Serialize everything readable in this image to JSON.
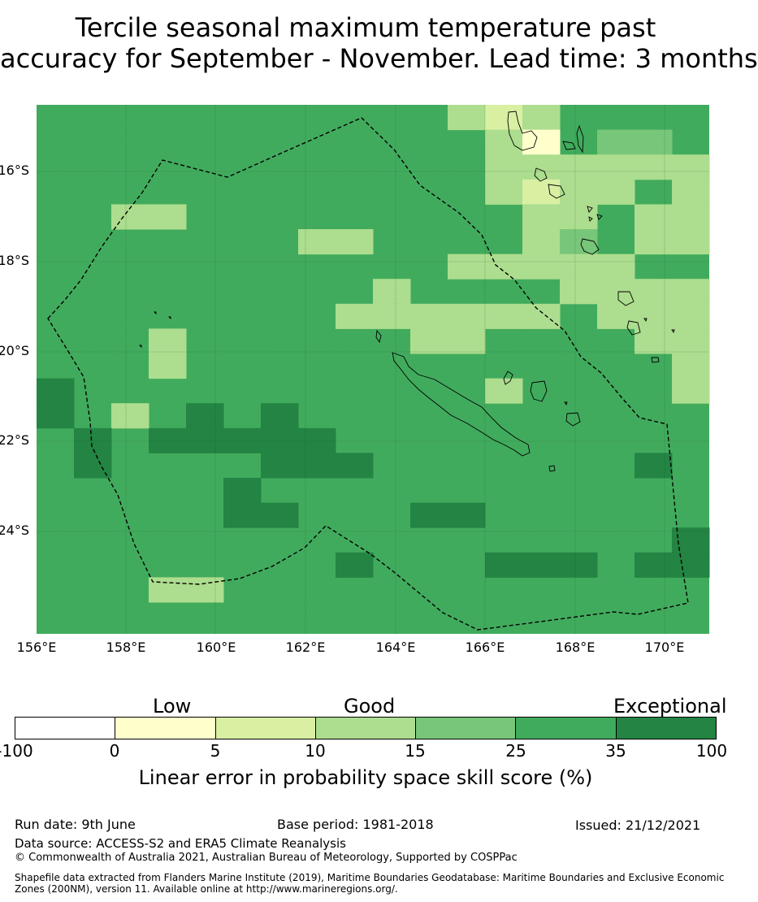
{
  "title_line1": "Tercile seasonal maximum temperature past",
  "title_line2": "accuracy for September - November. Lead time: 3 months",
  "map": {
    "lat_labels": [
      "16°S",
      "18°S",
      "20°S",
      "22°S",
      "24°S"
    ],
    "lon_labels": [
      "156°E",
      "158°E",
      "160°E",
      "162°E",
      "164°E",
      "166°E",
      "168°E",
      "170°E"
    ],
    "default_category": 5,
    "cells": [
      [
        11,
        0,
        3
      ],
      [
        12,
        0,
        2
      ],
      [
        13,
        0,
        3
      ],
      [
        12,
        1,
        3
      ],
      [
        13,
        1,
        1
      ],
      [
        15,
        1,
        4
      ],
      [
        16,
        1,
        4
      ],
      [
        12,
        2,
        3
      ],
      [
        13,
        2,
        3
      ],
      [
        14,
        2,
        3
      ],
      [
        15,
        2,
        3
      ],
      [
        16,
        2,
        3
      ],
      [
        17,
        2,
        3
      ],
      [
        12,
        3,
        3
      ],
      [
        13,
        3,
        2
      ],
      [
        14,
        3,
        3
      ],
      [
        15,
        3,
        3
      ],
      [
        17,
        3,
        3
      ],
      [
        2,
        4,
        3
      ],
      [
        3,
        4,
        3
      ],
      [
        13,
        4,
        3
      ],
      [
        14,
        4,
        3
      ],
      [
        16,
        4,
        3
      ],
      [
        17,
        4,
        3
      ],
      [
        7,
        5,
        3
      ],
      [
        8,
        5,
        3
      ],
      [
        13,
        5,
        3
      ],
      [
        14,
        5,
        4
      ],
      [
        16,
        5,
        3
      ],
      [
        17,
        5,
        3
      ],
      [
        11,
        6,
        3
      ],
      [
        12,
        6,
        3
      ],
      [
        13,
        6,
        3
      ],
      [
        14,
        6,
        3
      ],
      [
        15,
        6,
        3
      ],
      [
        9,
        7,
        3
      ],
      [
        14,
        7,
        3
      ],
      [
        15,
        7,
        3
      ],
      [
        16,
        7,
        3
      ],
      [
        17,
        7,
        3
      ],
      [
        8,
        8,
        3
      ],
      [
        9,
        8,
        3
      ],
      [
        10,
        8,
        3
      ],
      [
        11,
        8,
        3
      ],
      [
        12,
        8,
        3
      ],
      [
        13,
        8,
        3
      ],
      [
        15,
        8,
        3
      ],
      [
        16,
        8,
        3
      ],
      [
        17,
        8,
        3
      ],
      [
        3,
        9,
        3
      ],
      [
        10,
        9,
        3
      ],
      [
        11,
        9,
        3
      ],
      [
        16,
        9,
        3
      ],
      [
        17,
        9,
        3
      ],
      [
        3,
        10,
        3
      ],
      [
        17,
        10,
        3
      ],
      [
        0,
        11,
        6
      ],
      [
        12,
        11,
        3
      ],
      [
        17,
        11,
        3
      ],
      [
        0,
        12,
        6
      ],
      [
        2,
        12,
        3
      ],
      [
        4,
        12,
        6
      ],
      [
        6,
        12,
        6
      ],
      [
        1,
        13,
        6
      ],
      [
        3,
        13,
        6
      ],
      [
        4,
        13,
        6
      ],
      [
        5,
        13,
        6
      ],
      [
        6,
        13,
        6
      ],
      [
        7,
        13,
        6
      ],
      [
        1,
        14,
        6
      ],
      [
        6,
        14,
        6
      ],
      [
        7,
        14,
        6
      ],
      [
        8,
        14,
        6
      ],
      [
        16,
        14,
        6
      ],
      [
        5,
        15,
        6
      ],
      [
        5,
        16,
        6
      ],
      [
        6,
        16,
        6
      ],
      [
        10,
        16,
        6
      ],
      [
        11,
        16,
        6
      ],
      [
        17,
        17,
        6
      ],
      [
        8,
        18,
        6
      ],
      [
        12,
        18,
        6
      ],
      [
        13,
        18,
        6
      ],
      [
        14,
        18,
        6
      ],
      [
        16,
        18,
        6
      ],
      [
        17,
        18,
        6
      ],
      [
        3,
        19,
        3
      ],
      [
        4,
        19,
        3
      ]
    ]
  },
  "legend": {
    "category_labels": [
      "Low",
      "Good",
      "Exceptional"
    ],
    "colors": [
      "#ffffff",
      "#ffffcc",
      "#d9f0a3",
      "#addd8e",
      "#78c679",
      "#41ab5d",
      "#238443"
    ],
    "ticks": [
      "-100",
      "0",
      "5",
      "10",
      "15",
      "25",
      "35",
      "100"
    ],
    "label": "Linear error in probability space skill score (%)"
  },
  "footer": {
    "run_date": "Run date: 9th June",
    "base_period": "Base period: 1981-2018",
    "issued": "Issued: 21/12/2021",
    "data_source": "Data source: ACCESS-S2 and ERA5 Climate Reanalysis",
    "copyright": "© Commonwealth of Australia 2021, Australian Bureau of Meteorology, Supported by COSPPac",
    "shapefile": "Shapefile data extracted from Flanders Marine Institute (2019), Maritime Boundaries Geodatabase: Maritime Boundaries and Exclusive Economic Zones (200NM), version 11. Available online at http://www.marineregions.org/."
  }
}
